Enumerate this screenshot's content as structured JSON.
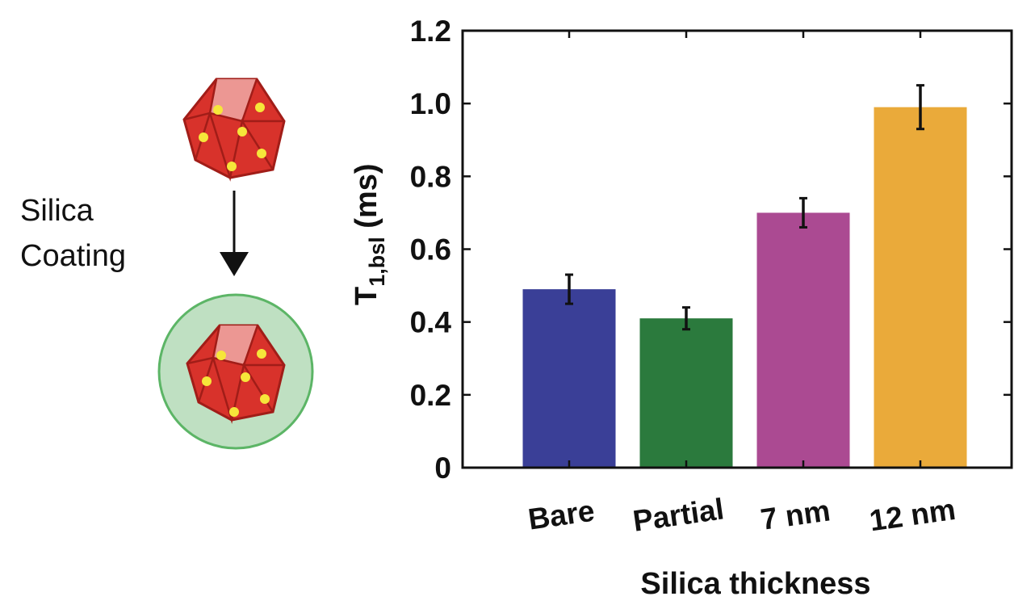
{
  "schematic": {
    "label_line1": "Silica",
    "label_line2": "Coating",
    "core_color": "#d8322b",
    "dot_color": "#f6e63a",
    "shell_color": "#bfe0c2",
    "shell_border": "#5cb566"
  },
  "chart_data": {
    "type": "bar",
    "categories": [
      "Bare",
      "Partial",
      "7 nm",
      "12 nm"
    ],
    "values": [
      0.49,
      0.41,
      0.7,
      0.99
    ],
    "errors": [
      0.04,
      0.03,
      0.04,
      0.06
    ],
    "colors": [
      "#3a3f97",
      "#2b7a3d",
      "#ab4a92",
      "#eaaa3a"
    ],
    "xlabel": "Silica thickness",
    "ylabel_main": "T",
    "ylabel_sub": "1,bsl",
    "ylabel_unit": " (ms)",
    "ylim": [
      0,
      1.2
    ],
    "yticks": [
      0,
      0.2,
      0.4,
      0.6,
      0.8,
      1.0,
      1.2
    ],
    "ytick_labels": [
      "0",
      "0.2",
      "0.4",
      "0.6",
      "0.8",
      "1.0",
      "1.2"
    ],
    "grid": false
  }
}
